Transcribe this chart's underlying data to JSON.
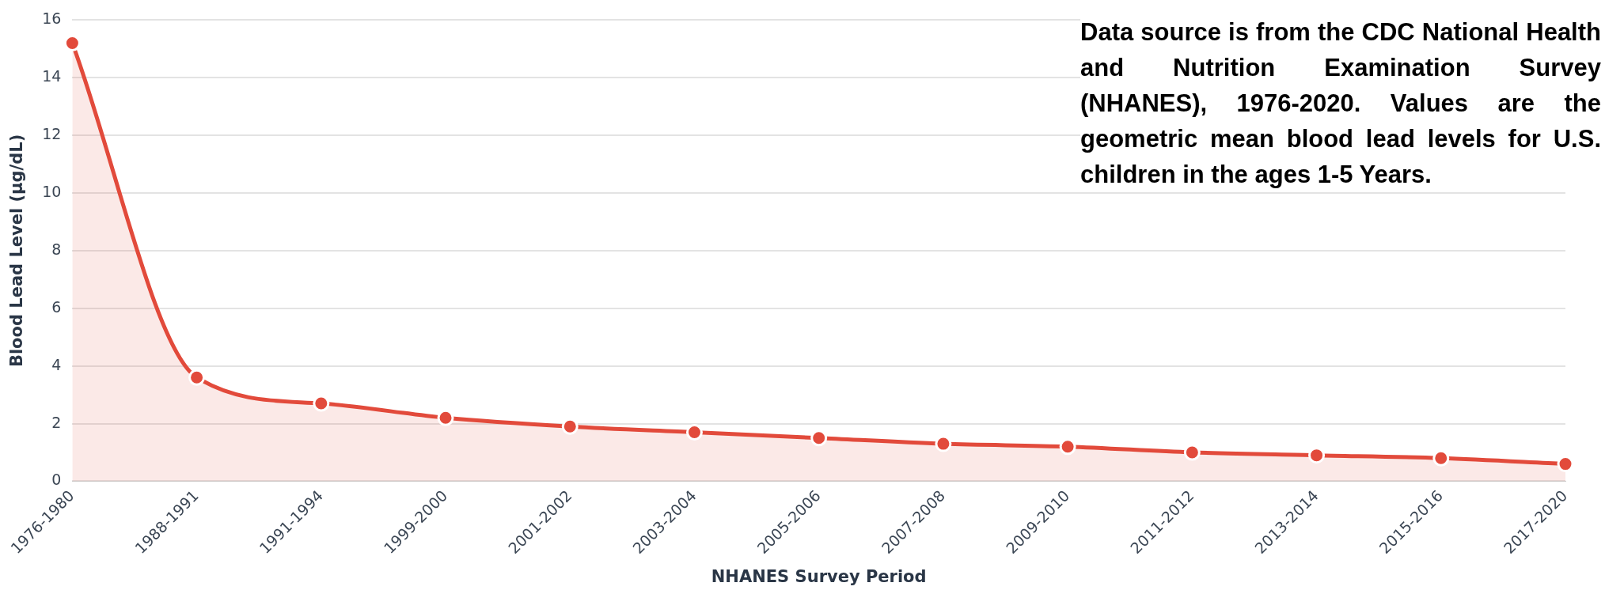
{
  "chart_data": {
    "type": "area",
    "xlabel": "NHANES Survey Period",
    "ylabel": "Blood Lead Level (µg/dL)",
    "categories": [
      "1976-1980",
      "1988-1991",
      "1991-1994",
      "1999-2000",
      "2001-2002",
      "2003-2004",
      "2005-2006",
      "2007-2008",
      "2009-2010",
      "2011-2012",
      "2013-2014",
      "2015-2016",
      "2017-2020"
    ],
    "series": [
      {
        "color": "#e24a3b",
        "values": [
          15.2,
          3.6,
          2.7,
          2.2,
          1.9,
          1.7,
          1.5,
          1.3,
          1.2,
          1.0,
          0.9,
          0.8,
          0.6
        ]
      }
    ],
    "ylim": [
      0,
      16
    ],
    "yticks": [
      0,
      2,
      4,
      6,
      8,
      10,
      12,
      14,
      16
    ],
    "grid": "y",
    "legend": false,
    "marker": "circle",
    "annotations": [
      "Data source is from the CDC National Health and Nutrition Examination Survey (NHANES), 1976-2020. Values are the geometric mean blood lead levels for U.S. children in the ages 1-5 Years."
    ]
  }
}
